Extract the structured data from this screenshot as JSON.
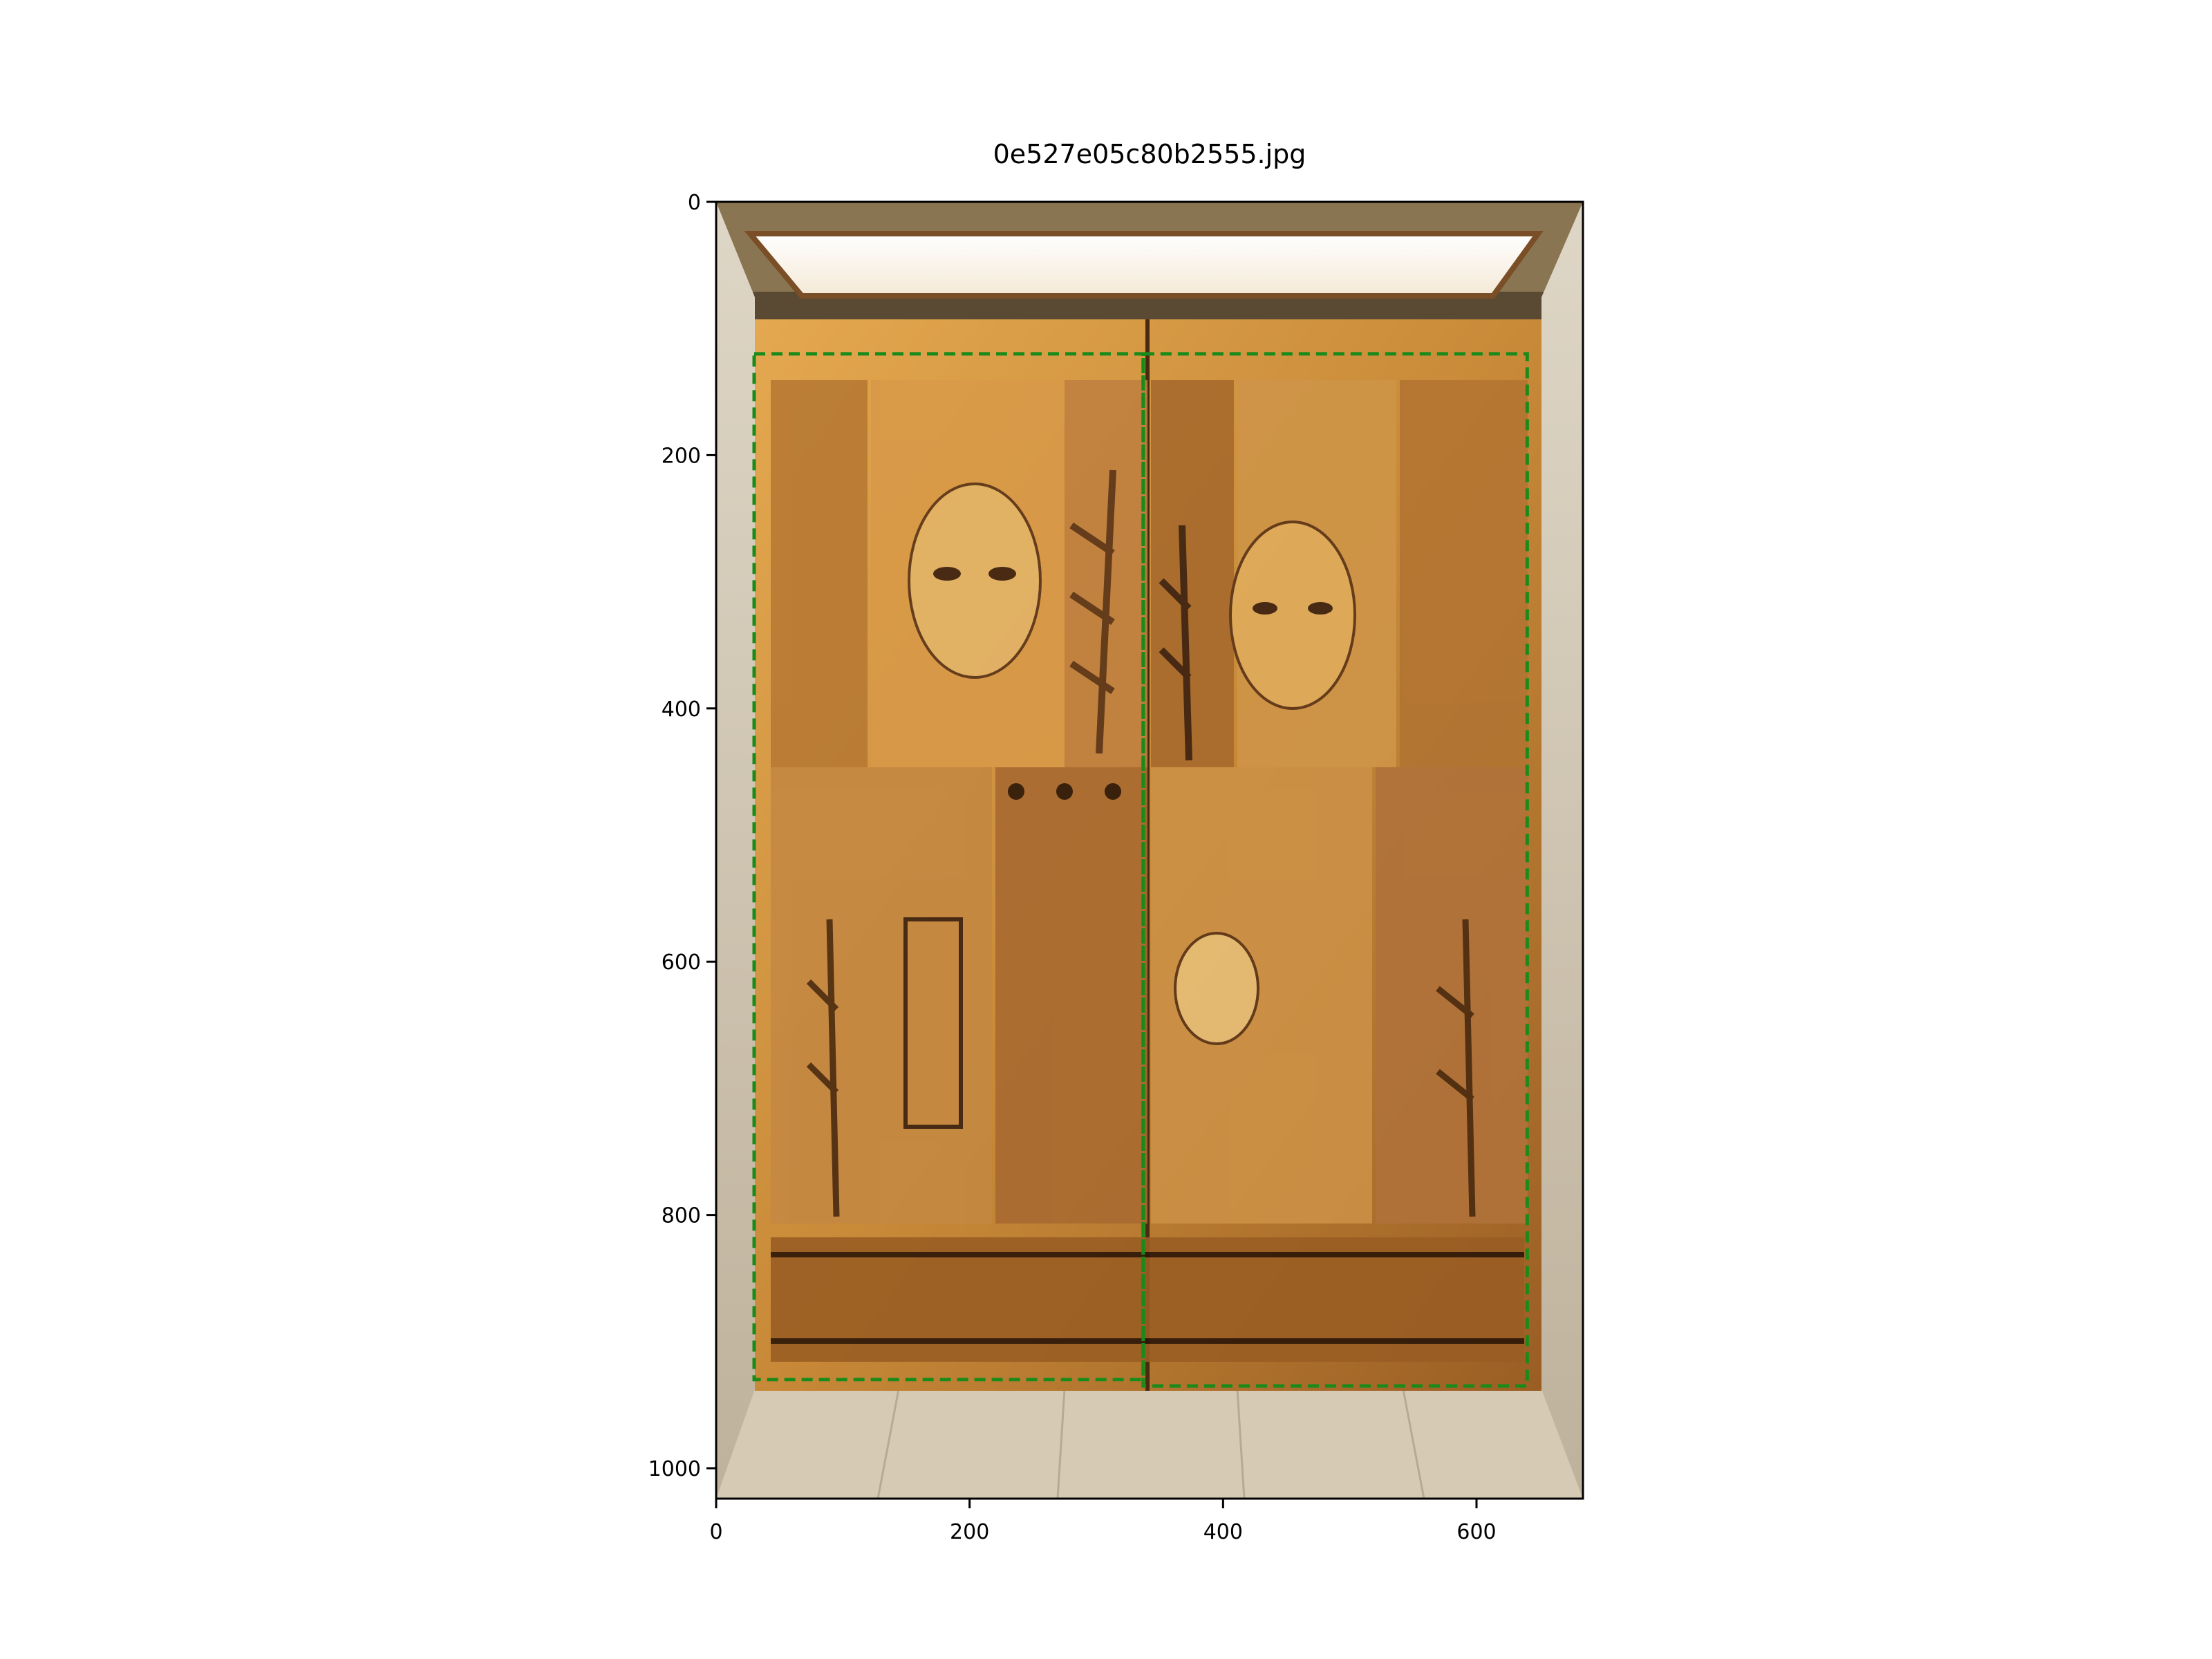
{
  "figure": {
    "title": "0e527e05c80b2555.jpg"
  },
  "axes": {
    "x_ticks": [
      "0",
      "200",
      "400",
      "600"
    ],
    "y_ticks": [
      "0",
      "200",
      "400",
      "600",
      "800",
      "1000"
    ],
    "x_range": [
      0,
      684
    ],
    "y_range": [
      1024,
      0
    ]
  },
  "image": {
    "description": "Elevator doors with a wood-marquetry mural of stylized faces, plants, birds, a guitar and a lyre, lit from a ceiling light, with marble side walls and floor.",
    "dominant_colors": [
      "#c98a3a",
      "#a8652a",
      "#e0b060",
      "#5a3418",
      "#d9cfc0"
    ]
  },
  "annotations": {
    "box_color": "#1a8a1a",
    "box_style": "dashed",
    "boxes": [
      {
        "label": "",
        "x0": 30,
        "y0": 120,
        "x1": 337,
        "y1": 930
      },
      {
        "label": "",
        "x0": 337,
        "y0": 120,
        "x1": 640,
        "y1": 935
      }
    ]
  }
}
